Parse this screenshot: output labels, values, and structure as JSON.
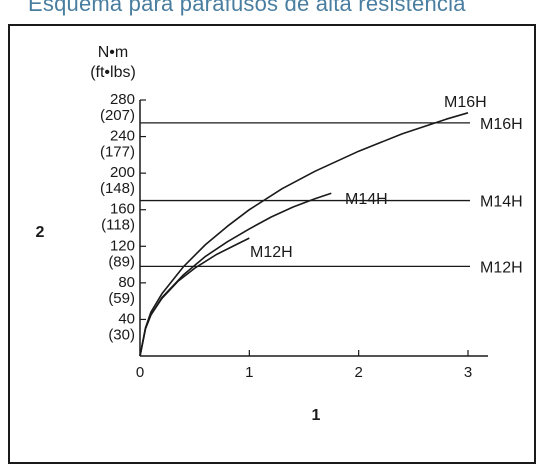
{
  "page": {
    "title": "Esquema para parafusos de alta resistência"
  },
  "chart_data": {
    "type": "line",
    "ylabel_unit": "N•m",
    "ylabel_unit_alt": "(ft•lbs)",
    "ylabel_number": "2",
    "xlabel_number": "1",
    "xlim": [
      0,
      3
    ],
    "ylim": [
      0,
      280
    ],
    "x_ticks": [
      {
        "value": 0,
        "label": "0"
      },
      {
        "value": 1,
        "label": "1"
      },
      {
        "value": 2,
        "label": "2"
      },
      {
        "value": 3,
        "label": "3"
      }
    ],
    "y_ticks": [
      {
        "value": 40,
        "label": "40",
        "alt": "(30)"
      },
      {
        "value": 80,
        "label": "80",
        "alt": "(59)"
      },
      {
        "value": 120,
        "label": "120",
        "alt": "(89)"
      },
      {
        "value": 160,
        "label": "160",
        "alt": "(118)"
      },
      {
        "value": 200,
        "label": "200",
        "alt": "(148)"
      },
      {
        "value": 240,
        "label": "240",
        "alt": "(177)"
      },
      {
        "value": 280,
        "label": "280",
        "alt": "(207)"
      }
    ],
    "series": [
      {
        "name": "M12H",
        "x": [
          0,
          0.05,
          0.1,
          0.2,
          0.35,
          0.5,
          0.7,
          0.9,
          1.0
        ],
        "y": [
          0,
          30,
          45,
          63,
          82,
          96,
          111,
          123,
          129
        ]
      },
      {
        "name": "M14H",
        "x": [
          0,
          0.05,
          0.1,
          0.2,
          0.4,
          0.6,
          0.8,
          1.0,
          1.2,
          1.4,
          1.6,
          1.75
        ],
        "y": [
          0,
          30,
          45,
          64,
          89,
          109,
          125,
          139,
          152,
          163,
          172,
          178
        ]
      },
      {
        "name": "M16H",
        "x": [
          0,
          0.05,
          0.1,
          0.2,
          0.4,
          0.6,
          0.8,
          1.0,
          1.3,
          1.6,
          2.0,
          2.4,
          2.8,
          3.0
        ],
        "y": [
          0,
          31,
          48,
          68,
          98,
          122,
          142,
          160,
          183,
          202,
          224,
          243,
          259,
          266
        ]
      }
    ],
    "reference_lines": [
      {
        "name": "M12H",
        "y": 98
      },
      {
        "name": "M14H",
        "y": 170
      },
      {
        "name": "M16H",
        "y": 255
      }
    ]
  }
}
